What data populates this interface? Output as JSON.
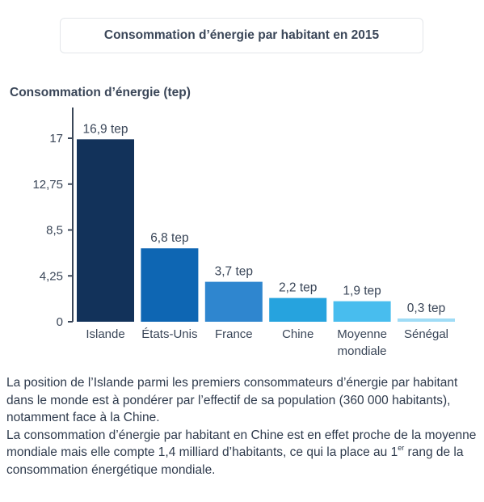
{
  "title": "Consommation d’énergie par habitant en 2015",
  "chart_data": {
    "type": "bar",
    "ylabel": "Consommation d’énergie (tep)",
    "ylim": [
      0,
      17
    ],
    "yticks": [
      "0",
      "4,25",
      "8,5",
      "12,75",
      "17"
    ],
    "categories": [
      "Islande",
      "États-Unis",
      "France",
      "Chine",
      "Moyenne mondiale",
      "Sénégal"
    ],
    "category_lines": [
      [
        "Islande"
      ],
      [
        "États-Unis"
      ],
      [
        "France"
      ],
      [
        "Chine"
      ],
      [
        "Moyenne",
        "mondiale"
      ],
      [
        "Sénégal"
      ]
    ],
    "values": [
      16.9,
      6.8,
      3.7,
      2.2,
      1.9,
      0.3
    ],
    "data_labels": [
      "16,9 tep",
      "6,8 tep",
      "3,7 tep",
      "2,2 tep",
      "1,9 tep",
      "0,3 tep"
    ],
    "colors": [
      "#12325a",
      "#0e66b3",
      "#2f86cf",
      "#26a3de",
      "#48bdee",
      "#9fdcf6"
    ]
  },
  "description": {
    "paragraph1": "La position de l’Islande parmi les premiers consommateurs d’énergie par habitant dans le monde est à pondérer par l’effectif de sa population (360 000 habitants), notamment face à la Chine.",
    "paragraph2_before": "La consommation d’énergie par habitant en Chine est en effet proche de la moyenne mondiale mais elle compte 1,4 milliard d’habitants, ce qui la place au 1",
    "paragraph2_sup": "er",
    "paragraph2_after": " rang de la consommation énergétique mondiale."
  }
}
